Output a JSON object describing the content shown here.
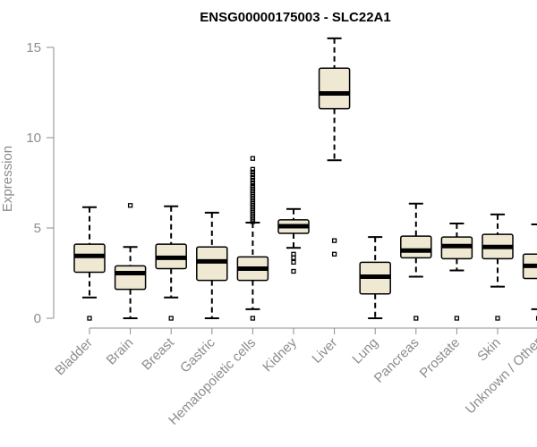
{
  "chart_data": {
    "type": "boxplot",
    "title": "ENSG00000175003 - SLC22A1",
    "xlabel": "",
    "ylabel": "Expression",
    "ylim": [
      0,
      15
    ],
    "yticks": [
      "0",
      "5",
      "10",
      "15"
    ],
    "colors": {
      "box_fill": "#efe9d3",
      "median": "#000000",
      "axis": "#8c8c8c"
    },
    "categories": [
      "Bladder",
      "Brain",
      "Breast",
      "Gastric",
      "Hematopoietic cells",
      "Kidney",
      "Liver",
      "Lung",
      "Pancreas",
      "Prostate",
      "Skin",
      "Unknown / Other"
    ],
    "boxes": [
      {
        "name": "Bladder",
        "whisker_low": 1.15,
        "q1": 2.55,
        "median": 3.45,
        "q3": 4.1,
        "whisker_high": 6.15,
        "outliers": [
          0.0
        ]
      },
      {
        "name": "Brain",
        "whisker_low": 0.0,
        "q1": 1.6,
        "median": 2.5,
        "q3": 2.9,
        "whisker_high": 3.95,
        "outliers": [
          6.25
        ]
      },
      {
        "name": "Breast",
        "whisker_low": 1.15,
        "q1": 2.75,
        "median": 3.35,
        "q3": 4.1,
        "whisker_high": 6.2,
        "outliers": [
          0.0
        ]
      },
      {
        "name": "Gastric",
        "whisker_low": 0.0,
        "q1": 2.1,
        "median": 3.15,
        "q3": 3.95,
        "whisker_high": 5.85,
        "outliers": []
      },
      {
        "name": "Hematopoietic cells",
        "whisker_low": 0.5,
        "q1": 2.1,
        "median": 2.75,
        "q3": 3.4,
        "whisker_high": 5.3,
        "outliers": [
          0.0,
          5.35,
          5.45,
          5.55,
          5.65,
          5.75,
          5.85,
          5.95,
          6.05,
          6.15,
          6.25,
          6.35,
          6.45,
          6.55,
          6.65,
          6.75,
          6.85,
          6.95,
          7.05,
          7.15,
          7.25,
          7.35,
          7.5,
          7.65,
          7.8,
          7.95,
          8.1,
          8.25,
          8.85
        ]
      },
      {
        "name": "Kidney",
        "whisker_low": 3.9,
        "q1": 4.7,
        "median": 5.1,
        "q3": 5.45,
        "whisker_high": 6.05,
        "outliers": [
          2.6,
          3.1,
          3.35,
          3.55
        ]
      },
      {
        "name": "Liver",
        "whisker_low": 8.75,
        "q1": 11.6,
        "median": 12.45,
        "q3": 13.85,
        "whisker_high": 15.5,
        "outliers": [
          3.55,
          4.3
        ]
      },
      {
        "name": "Lung",
        "whisker_low": 0.0,
        "q1": 1.35,
        "median": 2.3,
        "q3": 3.1,
        "whisker_high": 4.5,
        "outliers": []
      },
      {
        "name": "Pancreas",
        "whisker_low": 2.3,
        "q1": 3.35,
        "median": 3.75,
        "q3": 4.55,
        "whisker_high": 6.35,
        "outliers": [
          0.0
        ]
      },
      {
        "name": "Prostate",
        "whisker_low": 2.65,
        "q1": 3.3,
        "median": 4.0,
        "q3": 4.5,
        "whisker_high": 5.25,
        "outliers": [
          0.0
        ]
      },
      {
        "name": "Skin",
        "whisker_low": 1.75,
        "q1": 3.3,
        "median": 3.95,
        "q3": 4.65,
        "whisker_high": 5.75,
        "outliers": [
          0.0
        ]
      },
      {
        "name": "Unknown / Other",
        "whisker_low": 0.5,
        "q1": 2.2,
        "median": 2.9,
        "q3": 3.55,
        "whisker_high": 5.2,
        "outliers": [
          0.0
        ]
      }
    ]
  }
}
